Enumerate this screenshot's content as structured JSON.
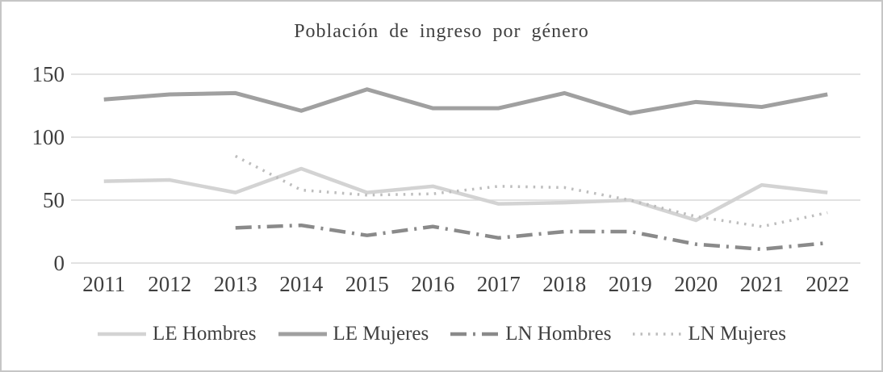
{
  "chart_data": {
    "type": "line",
    "title": "Población de ingreso por género",
    "xlabel": "",
    "ylabel": "",
    "categories": [
      "2011",
      "2012",
      "2013",
      "2014",
      "2015",
      "2016",
      "2017",
      "2018",
      "2019",
      "2020",
      "2021",
      "2022"
    ],
    "y_ticks": [
      150,
      100,
      50,
      0
    ],
    "ylim": [
      0,
      150
    ],
    "grid": "horizontal",
    "legend_position": "bottom",
    "gridline_color": "#d9d9d9",
    "text_color": "#3f3f3f",
    "series": [
      {
        "name": "LE Hombres",
        "slug": "le-hombres",
        "color": "#d3d3d3",
        "style": "solid",
        "width": 4.5,
        "values": [
          65,
          66,
          56,
          75,
          56,
          61,
          47,
          48,
          50,
          34,
          62,
          56
        ]
      },
      {
        "name": "LE Mujeres",
        "slug": "le-mujeres",
        "color": "#a0a0a0",
        "style": "solid",
        "width": 5,
        "values": [
          130,
          134,
          135,
          121,
          138,
          123,
          123,
          135,
          119,
          128,
          124,
          134
        ]
      },
      {
        "name": "LN Hombres",
        "slug": "ln-hombres",
        "color": "#8a8a8a",
        "style": "dash-dot",
        "width": 4.5,
        "values": [
          null,
          null,
          28,
          30,
          22,
          29,
          20,
          25,
          25,
          15,
          11,
          16
        ]
      },
      {
        "name": "LN Mujeres",
        "slug": "ln-mujeres",
        "color": "#bdbdbd",
        "style": "dotted",
        "width": 3.5,
        "values": [
          null,
          null,
          85,
          58,
          54,
          55,
          61,
          60,
          50,
          37,
          29,
          40
        ]
      }
    ]
  }
}
